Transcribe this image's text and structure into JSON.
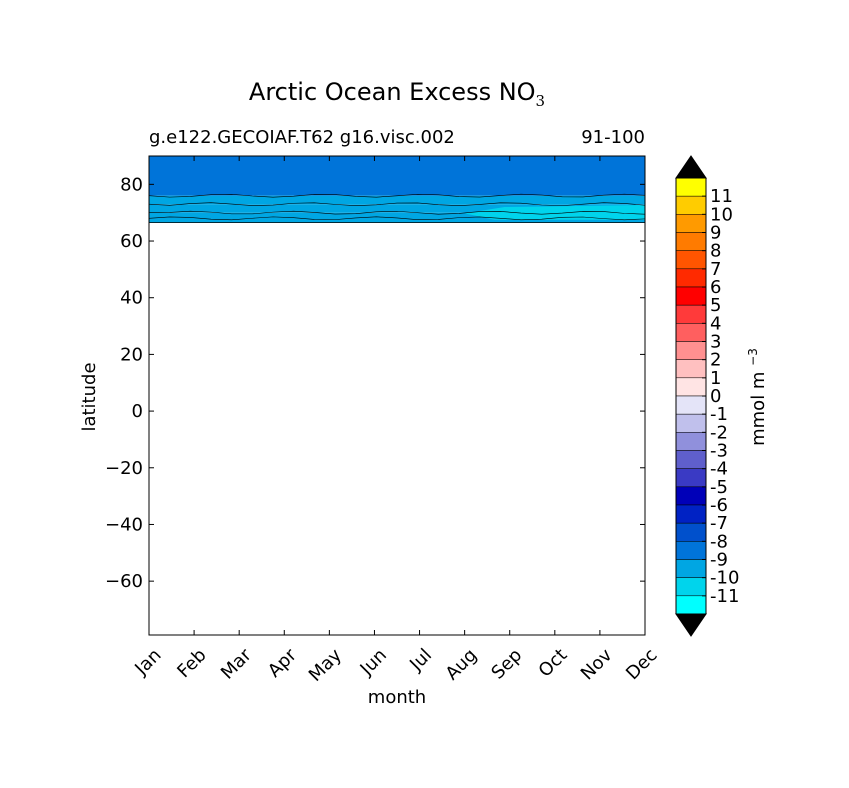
{
  "title": "Arctic Ocean Excess NO",
  "title_subscript": "3",
  "subtitle_left": "g.e122.GECOIAF.T62 g16.visc.002",
  "subtitle_right": "91-100",
  "chart_data": {
    "type": "heatmap",
    "title": "Arctic Ocean Excess NO3",
    "xlabel": "month",
    "ylabel": "latitude",
    "categories": [
      "Jan",
      "Feb",
      "Mar",
      "Apr",
      "May",
      "Jun",
      "Jul",
      "Aug",
      "Sep",
      "Oct",
      "Nov",
      "Dec"
    ],
    "ylim": [
      -79,
      90
    ],
    "y_ticks": [
      80,
      60,
      40,
      20,
      0,
      -20,
      -40,
      -60
    ],
    "y_tick_labels": [
      "80",
      "60",
      "40",
      "20",
      "0",
      "−20",
      "−40",
      "−60"
    ],
    "data_lat_range": [
      66.5,
      90
    ],
    "bands": [
      {
        "lat": [
          76,
          90
        ],
        "level": -9,
        "color": "#0074d9"
      },
      {
        "lat": [
          73,
          76
        ],
        "level": -10,
        "color": "#00a6e3"
      },
      {
        "lat": [
          70,
          73
        ],
        "level": -10,
        "color": "#00a6e3"
      },
      {
        "lat": [
          66.5,
          70
        ],
        "level": -10,
        "color": "#00a6e3"
      }
    ],
    "late_year_bands": [
      {
        "month_from": "Aug",
        "lat": [
          67.5,
          72
        ],
        "level": -11,
        "color": "#00d4ec"
      }
    ],
    "colorbar": {
      "label": "mmol m",
      "label_superscript": "−3",
      "levels": [
        "11",
        "10",
        "9",
        "8",
        "7",
        "6",
        "5",
        "4",
        "3",
        "2",
        "1",
        "0",
        "-1",
        "-2",
        "-3",
        "-4",
        "-5",
        "-6",
        "-7",
        "-8",
        "-9",
        "-10",
        "-11"
      ],
      "colors": [
        "#ffff00",
        "#ffcc00",
        "#ff9a00",
        "#ff7b00",
        "#ff5500",
        "#ff2a00",
        "#ff0000",
        "#ff3a3a",
        "#ff5f5f",
        "#ff9090",
        "#ffc0c0",
        "#ffe4e4",
        "#e4e4f8",
        "#c0c0ec",
        "#9090dc",
        "#5f5fcc",
        "#3a3ac4",
        "#0000b8",
        "#0022c4",
        "#0050cc",
        "#0074d9",
        "#00a6e3",
        "#00d4ec",
        "#00ffff"
      ],
      "over_color": "#000000",
      "under_color": "#000000"
    }
  }
}
